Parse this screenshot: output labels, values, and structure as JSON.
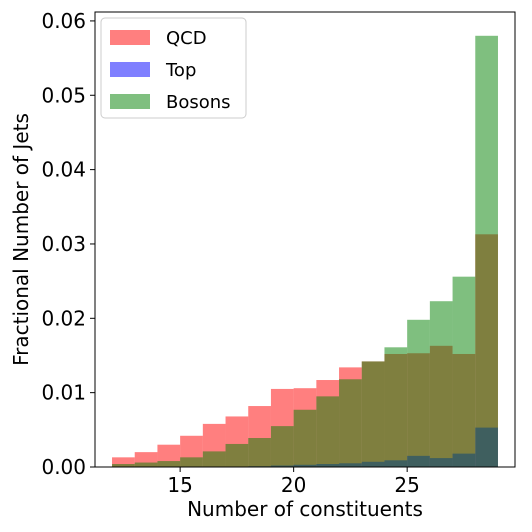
{
  "chart_data": {
    "type": "bar",
    "xlabel": "Number of constituents",
    "ylabel": "Fractional Number of Jets",
    "xlim": [
      11.25,
      29.75
    ],
    "ylim": [
      0,
      0.0612
    ],
    "x_ticks": [
      15,
      20,
      25
    ],
    "x_tick_labels": [
      "15",
      "20",
      "25"
    ],
    "y_ticks": [
      0.0,
      0.01,
      0.02,
      0.03,
      0.04,
      0.05,
      0.06
    ],
    "y_tick_labels": [
      "0.00",
      "0.01",
      "0.02",
      "0.03",
      "0.04",
      "0.05",
      "0.06"
    ],
    "bin_edges": [
      12,
      13,
      14,
      15,
      16,
      17,
      18,
      19,
      20,
      21,
      22,
      23,
      24,
      25,
      26,
      27,
      28,
      29
    ],
    "grid": false,
    "legend_position": "top-left",
    "series": [
      {
        "name": "QCD",
        "color": "#ff0000",
        "alpha": 0.5,
        "values": [
          0.0013,
          0.002,
          0.003,
          0.0042,
          0.0058,
          0.0068,
          0.0082,
          0.0105,
          0.0106,
          0.0117,
          0.0134,
          0.0142,
          0.0152,
          0.0153,
          0.0163,
          0.0152,
          0.0313
        ]
      },
      {
        "name": "Top",
        "color": "#0000ff",
        "alpha": 0.5,
        "values": [
          0.0,
          0.0,
          0.0,
          0.0,
          0.0,
          0.0,
          0.0001,
          0.0002,
          0.0003,
          0.0004,
          0.0005,
          0.0007,
          0.0009,
          0.0015,
          0.0012,
          0.0018,
          0.0053
        ]
      },
      {
        "name": "Bosons",
        "color": "#008000",
        "alpha": 0.5,
        "values": [
          0.0004,
          0.0006,
          0.0008,
          0.0013,
          0.0021,
          0.0031,
          0.0039,
          0.0055,
          0.0077,
          0.0095,
          0.0118,
          0.0142,
          0.0161,
          0.0198,
          0.0223,
          0.0256,
          0.058
        ]
      }
    ]
  }
}
